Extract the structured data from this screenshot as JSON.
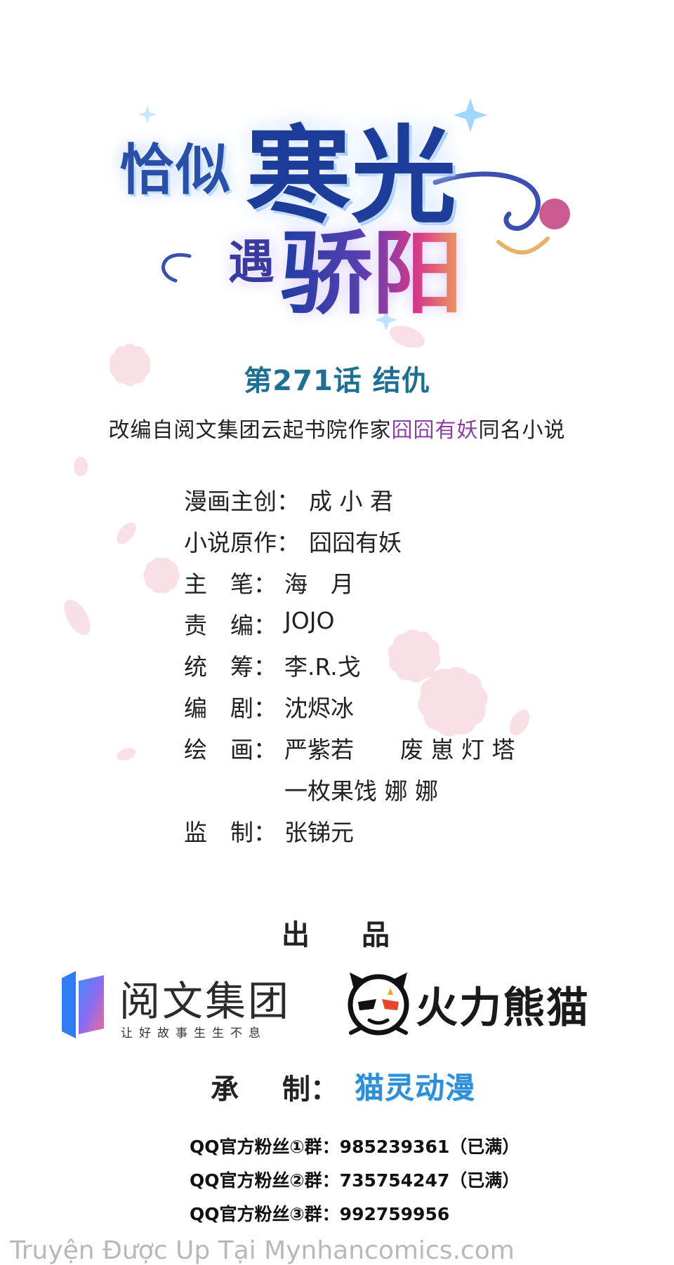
{
  "logo": {
    "line1a": "恰似",
    "line1b": "寒光",
    "line2a": "遇",
    "line2b": "骄阳"
  },
  "chapter_title": "第271话  结仇",
  "adaptation": {
    "prefix": "改编自阅文集团云起书院作家",
    "author": "囧囧有妖",
    "suffix": "同名小说"
  },
  "credits": [
    {
      "label": "漫画主创：",
      "value": "成 小 君"
    },
    {
      "label": "小说原作：",
      "value": "囧囧有妖"
    },
    {
      "label": "主　笔：",
      "value": "海　月"
    },
    {
      "label": "责　编：",
      "value": "JOJO"
    },
    {
      "label": "统　筹：",
      "value": "李.R.戈"
    },
    {
      "label": "编　剧：",
      "value": "沈烬冰"
    },
    {
      "label": "绘　画：",
      "value": "严紫若",
      "value2": "废 崽  灯 塔"
    },
    {
      "label": "",
      "value": "一枚果饯  娜 娜"
    },
    {
      "label": "监　制：",
      "value": "张锑元"
    }
  ],
  "produced_by": {
    "a": "出",
    "b": "品"
  },
  "brands": {
    "yuewen": {
      "name": "阅文集团",
      "slogan": "让好故事生生不息"
    },
    "huoli": {
      "name": "火力熊猫"
    }
  },
  "made_by": {
    "a": "承",
    "b": "制：",
    "studio": "猫灵动漫"
  },
  "qq_groups": [
    "QQ官方粉丝①群：985239361（已满）",
    "QQ官方粉丝②群：735754247（已满）",
    "QQ官方粉丝③群：992759956"
  ],
  "watermark": "Truyện Được Up Tại Mynhancomics.com",
  "colors": {
    "chapter": "#1f6f93",
    "author_highlight": "#8a3fa2",
    "studio": "#2e8fd6",
    "watermark": "#b8b8b8"
  }
}
